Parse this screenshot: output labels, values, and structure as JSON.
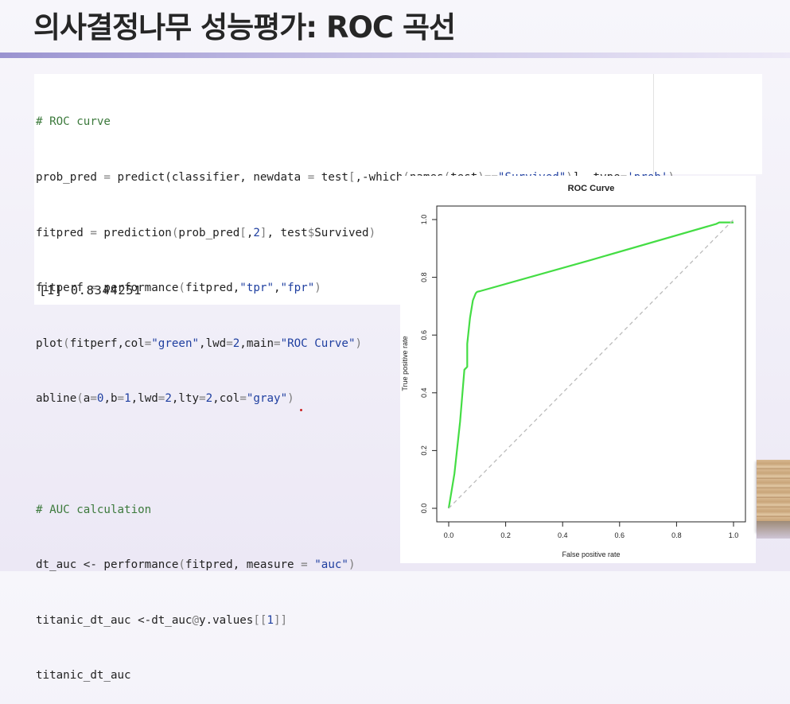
{
  "slide": {
    "title": "의사결정나무 성능평가: ROC 곡선"
  },
  "code": {
    "line1": "# ROC curve",
    "line2": [
      {
        "t": "prob_pred ",
        "c": ""
      },
      {
        "t": "=",
        "c": "op"
      },
      {
        "t": " predict(classifier, newdata ",
        "c": ""
      },
      {
        "t": "=",
        "c": "op"
      },
      {
        "t": " test",
        "c": ""
      },
      {
        "t": "[",
        "c": "op"
      },
      {
        "t": ",-which",
        "c": ""
      },
      {
        "t": "(",
        "c": "op"
      },
      {
        "t": "names",
        "c": ""
      },
      {
        "t": "(",
        "c": "op"
      },
      {
        "t": "test",
        "c": ""
      },
      {
        "t": ")==",
        "c": "op"
      },
      {
        "t": "\"Survived\"",
        "c": "str"
      },
      {
        "t": ")",
        "c": "op"
      },
      {
        "t": "]",
        "c": ""
      },
      {
        "t": ", type",
        "c": ""
      },
      {
        "t": "=",
        "c": "op"
      },
      {
        "t": "'prob'",
        "c": "str"
      },
      {
        "t": ")",
        "c": "op"
      }
    ],
    "line3": [
      {
        "t": "fitpred ",
        "c": ""
      },
      {
        "t": "=",
        "c": "op"
      },
      {
        "t": " prediction",
        "c": ""
      },
      {
        "t": "(",
        "c": "op"
      },
      {
        "t": "prob_pred",
        "c": ""
      },
      {
        "t": "[",
        "c": "op"
      },
      {
        "t": ",",
        "c": ""
      },
      {
        "t": "2",
        "c": "num"
      },
      {
        "t": "]",
        "c": "op"
      },
      {
        "t": ", test",
        "c": ""
      },
      {
        "t": "$",
        "c": "op"
      },
      {
        "t": "Survived",
        "c": ""
      },
      {
        "t": ")",
        "c": "op"
      }
    ],
    "line4": [
      {
        "t": "fitperf ",
        "c": ""
      },
      {
        "t": "=",
        "c": "op"
      },
      {
        "t": " performance",
        "c": ""
      },
      {
        "t": "(",
        "c": "op"
      },
      {
        "t": "fitpred,",
        "c": ""
      },
      {
        "t": "\"tpr\"",
        "c": "str"
      },
      {
        "t": ",",
        "c": ""
      },
      {
        "t": "\"fpr\"",
        "c": "str"
      },
      {
        "t": ")",
        "c": "op"
      }
    ],
    "line5": [
      {
        "t": "plot",
        "c": ""
      },
      {
        "t": "(",
        "c": "op"
      },
      {
        "t": "fitperf,col",
        "c": ""
      },
      {
        "t": "=",
        "c": "op"
      },
      {
        "t": "\"green\"",
        "c": "str"
      },
      {
        "t": ",lwd",
        "c": ""
      },
      {
        "t": "=",
        "c": "op"
      },
      {
        "t": "2",
        "c": "num"
      },
      {
        "t": ",main",
        "c": ""
      },
      {
        "t": "=",
        "c": "op"
      },
      {
        "t": "\"ROC Curve\"",
        "c": "str"
      },
      {
        "t": ")",
        "c": "op"
      }
    ],
    "line6": [
      {
        "t": "abline",
        "c": ""
      },
      {
        "t": "(",
        "c": "op"
      },
      {
        "t": "a",
        "c": ""
      },
      {
        "t": "=",
        "c": "op"
      },
      {
        "t": "0",
        "c": "num"
      },
      {
        "t": ",b",
        "c": ""
      },
      {
        "t": "=",
        "c": "op"
      },
      {
        "t": "1",
        "c": "num"
      },
      {
        "t": ",lwd",
        "c": ""
      },
      {
        "t": "=",
        "c": "op"
      },
      {
        "t": "2",
        "c": "num"
      },
      {
        "t": ",lty",
        "c": ""
      },
      {
        "t": "=",
        "c": "op"
      },
      {
        "t": "2",
        "c": "num"
      },
      {
        "t": ",col",
        "c": ""
      },
      {
        "t": "=",
        "c": "op"
      },
      {
        "t": "\"gray\"",
        "c": "str"
      },
      {
        "t": ")",
        "c": "op"
      }
    ],
    "line7": "# AUC calculation",
    "line8": [
      {
        "t": "dt_auc <- performance",
        "c": ""
      },
      {
        "t": "(",
        "c": "op"
      },
      {
        "t": "fitpred, measure ",
        "c": ""
      },
      {
        "t": "=",
        "c": "op"
      },
      {
        "t": " ",
        "c": ""
      },
      {
        "t": "\"auc\"",
        "c": "str"
      },
      {
        "t": ")",
        "c": "op"
      }
    ],
    "line9": [
      {
        "t": "titanic_dt_auc <-dt_auc",
        "c": ""
      },
      {
        "t": "@",
        "c": "op"
      },
      {
        "t": "y.values",
        "c": ""
      },
      {
        "t": "[[",
        "c": "op"
      },
      {
        "t": "1",
        "c": "num"
      },
      {
        "t": "]]",
        "c": "op"
      }
    ],
    "line10": "titanic_dt_auc",
    "output": "[1] 0.8344251"
  },
  "chart_data": {
    "type": "line",
    "title": "ROC Curve",
    "xlabel": "False positive rate",
    "ylabel": "True positive rate",
    "xlim": [
      0,
      1
    ],
    "ylim": [
      0,
      1
    ],
    "x_ticks": [
      "0.0",
      "0.2",
      "0.4",
      "0.6",
      "0.8",
      "1.0"
    ],
    "y_ticks": [
      "0.0",
      "0.2",
      "0.4",
      "0.6",
      "0.8",
      "1.0"
    ],
    "grid": false,
    "series": [
      {
        "color": "#44dd44",
        "x": [
          0.0,
          0.02,
          0.04,
          0.055,
          0.065,
          0.065,
          0.075,
          0.085,
          0.095,
          0.1,
          0.11,
          0.5,
          0.94,
          0.95,
          1.0
        ],
        "y": [
          0.0,
          0.12,
          0.3,
          0.48,
          0.49,
          0.57,
          0.66,
          0.72,
          0.745,
          0.75,
          0.752,
          0.86,
          0.985,
          0.99,
          0.99
        ]
      },
      {
        "color": "#bbbbbb",
        "dashed": true,
        "x": [
          0,
          1
        ],
        "y": [
          0,
          1
        ]
      }
    ]
  }
}
